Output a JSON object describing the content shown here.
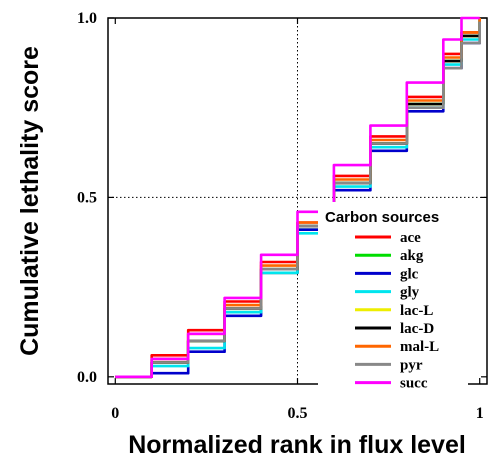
{
  "chart_data": {
    "type": "line",
    "xlabel": "Normalized rank in flux level",
    "ylabel": "Cumulative lethality score",
    "xlim": [
      -0.02,
      1.02
    ],
    "ylim": [
      -0.02,
      1.0
    ],
    "xticks": [
      {
        "v": 0,
        "label": "0"
      },
      {
        "v": 0.5,
        "label": "0.5"
      },
      {
        "v": 1,
        "label": "1"
      }
    ],
    "yticks": [
      {
        "v": 0,
        "label": "0.0"
      },
      {
        "v": 0.5,
        "label": "0.5"
      },
      {
        "v": 1,
        "label": "1.0"
      }
    ],
    "grid": "dotted at 0.5 on both axes",
    "legend": {
      "title": "Carbon sources",
      "placement": "bottom-right"
    },
    "series": [
      {
        "name": "ace",
        "color": "#ff0000",
        "x": [
          0,
          0.1,
          0.2,
          0.3,
          0.4,
          0.5,
          0.6,
          0.7,
          0.8,
          0.9,
          0.95,
          1
        ],
        "y": [
          0,
          0.06,
          0.13,
          0.21,
          0.32,
          0.43,
          0.56,
          0.67,
          0.78,
          0.9,
          0.96,
          1.0
        ]
      },
      {
        "name": "akg",
        "color": "#00dd00",
        "x": [
          0,
          0.1,
          0.2,
          0.3,
          0.4,
          0.5,
          0.6,
          0.7,
          0.8,
          0.9,
          0.95,
          1
        ],
        "y": [
          0,
          0.04,
          0.1,
          0.18,
          0.29,
          0.41,
          0.54,
          0.65,
          0.76,
          0.88,
          0.95,
          1.0
        ]
      },
      {
        "name": "glc",
        "color": "#0000cc",
        "x": [
          0,
          0.1,
          0.2,
          0.3,
          0.4,
          0.5,
          0.6,
          0.7,
          0.8,
          0.9,
          0.95,
          1
        ],
        "y": [
          0,
          0.01,
          0.07,
          0.17,
          0.29,
          0.41,
          0.52,
          0.63,
          0.74,
          0.86,
          0.93,
          0.99
        ]
      },
      {
        "name": "gly",
        "color": "#00e5ee",
        "x": [
          0,
          0.1,
          0.2,
          0.3,
          0.4,
          0.5,
          0.6,
          0.7,
          0.8,
          0.9,
          0.95,
          1
        ],
        "y": [
          0,
          0.03,
          0.08,
          0.18,
          0.29,
          0.4,
          0.53,
          0.64,
          0.75,
          0.87,
          0.94,
          1.0
        ]
      },
      {
        "name": "lac-L",
        "color": "#eeee00",
        "x": [
          0,
          0.1,
          0.2,
          0.3,
          0.4,
          0.5,
          0.6,
          0.7,
          0.8,
          0.9,
          0.95,
          1
        ],
        "y": [
          0,
          0.04,
          0.1,
          0.19,
          0.3,
          0.42,
          0.54,
          0.65,
          0.76,
          0.88,
          0.95,
          1.0
        ]
      },
      {
        "name": "lac-D",
        "color": "#000000",
        "x": [
          0,
          0.1,
          0.2,
          0.3,
          0.4,
          0.5,
          0.6,
          0.7,
          0.8,
          0.9,
          0.95,
          1
        ],
        "y": [
          0,
          0.04,
          0.1,
          0.19,
          0.3,
          0.42,
          0.54,
          0.65,
          0.76,
          0.88,
          0.95,
          1.0
        ]
      },
      {
        "name": "mal-L",
        "color": "#ff6600",
        "x": [
          0,
          0.1,
          0.2,
          0.3,
          0.4,
          0.5,
          0.6,
          0.7,
          0.8,
          0.9,
          0.95,
          1
        ],
        "y": [
          0,
          0.05,
          0.12,
          0.2,
          0.31,
          0.43,
          0.55,
          0.66,
          0.77,
          0.89,
          0.96,
          1.0
        ]
      },
      {
        "name": "pyr",
        "color": "#888888",
        "x": [
          0,
          0.1,
          0.2,
          0.3,
          0.4,
          0.5,
          0.6,
          0.7,
          0.8,
          0.9,
          0.95,
          1
        ],
        "y": [
          0,
          0.04,
          0.1,
          0.19,
          0.3,
          0.42,
          0.54,
          0.65,
          0.75,
          0.86,
          0.93,
          0.99
        ]
      },
      {
        "name": "succ",
        "color": "#ff00ff",
        "x": [
          0,
          0.1,
          0.2,
          0.3,
          0.4,
          0.5,
          0.6,
          0.7,
          0.8,
          0.9,
          0.95,
          1
        ],
        "y": [
          0,
          0.05,
          0.12,
          0.22,
          0.34,
          0.46,
          0.59,
          0.7,
          0.82,
          0.94,
          1.0,
          1.0
        ]
      }
    ]
  }
}
